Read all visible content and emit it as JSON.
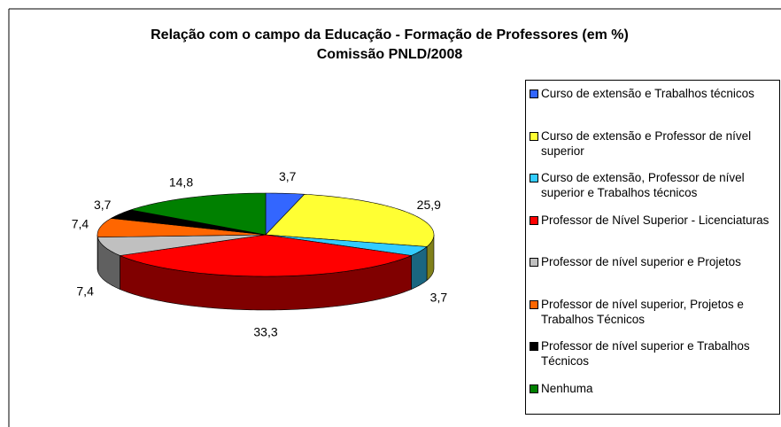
{
  "chart_data": {
    "type": "pie3d",
    "title": "Relação com o campo da Educação - Formação de Professores (em %)",
    "subtitle": "Comissão PNLD/2008",
    "categories": [
      "Curso de extensão e Trabalhos técnicos",
      "Curso de extensão e Professor de nível superior",
      "Curso de extensão, Professor de nível superior e Trabalhos técnicos",
      "Professor de Nível Superior - Licenciaturas",
      "Professor de nível superior e Projetos",
      "Professor de nível superior, Projetos e Trabalhos Técnicos",
      "Professor de nível superior e Trabalhos Técnicos",
      "Nenhuma"
    ],
    "values": [
      3.7,
      25.9,
      3.7,
      33.3,
      7.4,
      7.4,
      3.7,
      14.8
    ],
    "value_labels": [
      "3,7",
      "25,9",
      "3,7",
      "33,3",
      "7,4",
      "7,4",
      "3,7",
      "14,8"
    ],
    "colors": [
      "#3366ff",
      "#ffff33",
      "#33ccff",
      "#ff0000",
      "#c0c0c0",
      "#ff6600",
      "#000000",
      "#008000"
    ],
    "legend": "right"
  }
}
